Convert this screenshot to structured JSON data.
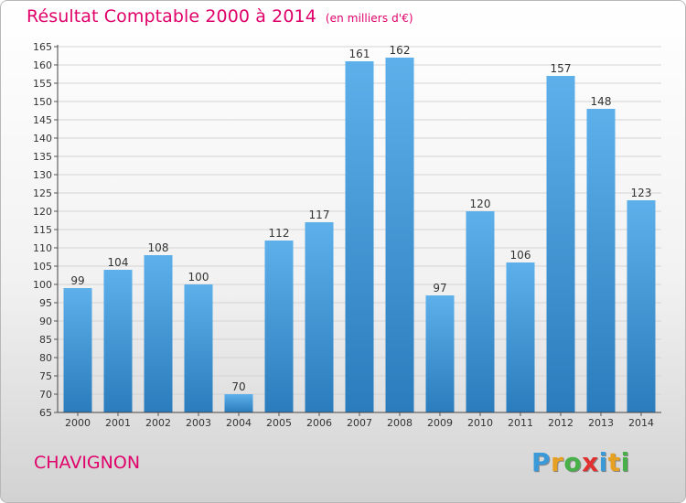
{
  "header": {
    "title": "Résultat Comptable 2000 à 2014",
    "subtitle": "(en milliers d'€)"
  },
  "footer": {
    "commune": "CHAVIGNON",
    "logo": [
      "P",
      "r",
      "o",
      "x",
      "i",
      "t",
      "i"
    ],
    "logo_colors": [
      "#3a9ad9",
      "#e8a020",
      "#48b048",
      "#e03030",
      "#3a9ad9",
      "#e8a020",
      "#48b048"
    ]
  },
  "chart_data": {
    "type": "bar",
    "title": "Résultat Comptable 2000 à 2014",
    "subtitle": "(en milliers d'€)",
    "categories": [
      "2000",
      "2001",
      "2002",
      "2003",
      "2004",
      "2005",
      "2006",
      "2007",
      "2008",
      "2009",
      "2010",
      "2011",
      "2012",
      "2013",
      "2014"
    ],
    "values": [
      99,
      104,
      108,
      100,
      70,
      112,
      117,
      161,
      162,
      97,
      120,
      106,
      157,
      148,
      123
    ],
    "ylim": [
      65,
      165
    ],
    "yticks": [
      65,
      70,
      75,
      80,
      85,
      90,
      95,
      100,
      105,
      110,
      115,
      120,
      125,
      130,
      135,
      140,
      145,
      150,
      155,
      160,
      165
    ],
    "grid": true,
    "bar_color_top": "#5db0ea",
    "bar_color_bottom": "#2a7cbc"
  }
}
